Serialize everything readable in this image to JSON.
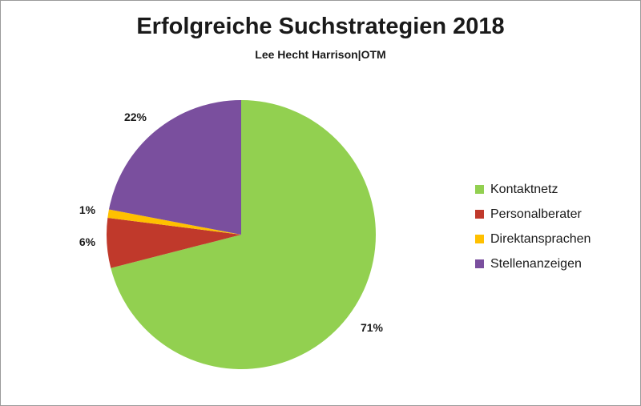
{
  "chart_data": {
    "type": "pie",
    "title": "Erfolgreiche Suchstrategien 2018",
    "subtitle": "Lee Hecht Harrison|OTM",
    "categories": [
      "Kontaktnetz",
      "Personalberater",
      "Direktansprachen",
      "Stellenanzeigen"
    ],
    "values": [
      71,
      6,
      1,
      22
    ],
    "data_labels": [
      "71%",
      "6%",
      "1%",
      "22%"
    ],
    "colors": [
      "#92d050",
      "#c0392b",
      "#ffc000",
      "#7a4f9e"
    ],
    "legend_position": "right",
    "start_angle": "12 o'clock, clockwise"
  }
}
